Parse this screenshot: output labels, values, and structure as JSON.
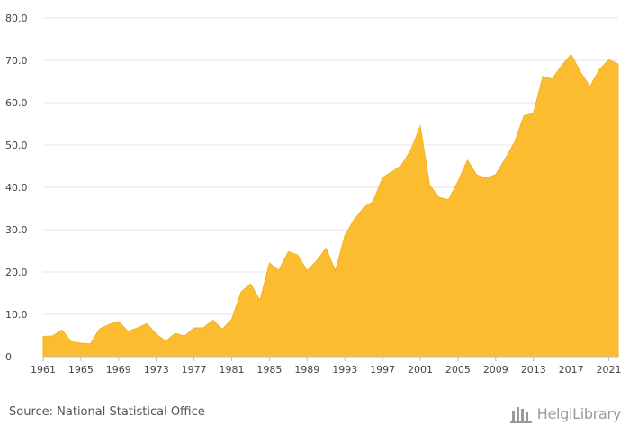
{
  "chart_data": {
    "type": "area",
    "x": [
      1961,
      1962,
      1963,
      1964,
      1965,
      1966,
      1967,
      1968,
      1969,
      1970,
      1971,
      1972,
      1973,
      1974,
      1975,
      1976,
      1977,
      1978,
      1979,
      1980,
      1981,
      1982,
      1983,
      1984,
      1985,
      1986,
      1987,
      1988,
      1989,
      1990,
      1991,
      1992,
      1993,
      1994,
      1995,
      1996,
      1997,
      1998,
      1999,
      2000,
      2001,
      2002,
      2003,
      2004,
      2005,
      2006,
      2007,
      2008,
      2009,
      2010,
      2011,
      2012,
      2013,
      2014,
      2015,
      2016,
      2017,
      2018,
      2019,
      2020,
      2021,
      2022
    ],
    "series": [
      {
        "values": [
          4.8,
          4.9,
          6.3,
          3.5,
          3.2,
          3.0,
          6.6,
          7.6,
          8.3,
          6.0,
          6.8,
          7.8,
          5.3,
          3.7,
          5.5,
          4.9,
          6.8,
          6.8,
          8.6,
          6.5,
          8.8,
          15.3,
          17.2,
          13.3,
          22.1,
          20.4,
          24.8,
          24.0,
          20.3,
          22.6,
          25.6,
          20.3,
          28.6,
          32.4,
          35.2,
          36.7,
          42.3,
          43.7,
          45.2,
          48.8,
          54.5,
          40.5,
          37.6,
          37.1,
          41.4,
          46.4,
          42.9,
          42.2,
          43.0,
          46.7,
          50.6,
          56.9,
          57.5,
          66.2,
          65.6,
          68.8,
          71.4,
          67.2,
          63.8,
          67.8,
          70.1,
          69.1
        ]
      }
    ],
    "ylim": [
      0,
      80
    ],
    "y_ticks": [
      "0",
      "10.0",
      "20.0",
      "30.0",
      "40.0",
      "50.0",
      "60.0",
      "70.0",
      "80.0"
    ],
    "x_tick_labels": [
      "1961",
      "1965",
      "1969",
      "1973",
      "1977",
      "1981",
      "1985",
      "1989",
      "1993",
      "1997",
      "2001",
      "2005",
      "2009",
      "2013",
      "2017",
      "2021"
    ],
    "grid": true,
    "legend": "none",
    "fill_color": "#fbbd2f",
    "stroke_color": "#f2b320",
    "grid_color": "#e6e6e6"
  },
  "footer": {
    "source": "Source: National Statistical Office",
    "logo_text": "HelgiLibrary"
  }
}
